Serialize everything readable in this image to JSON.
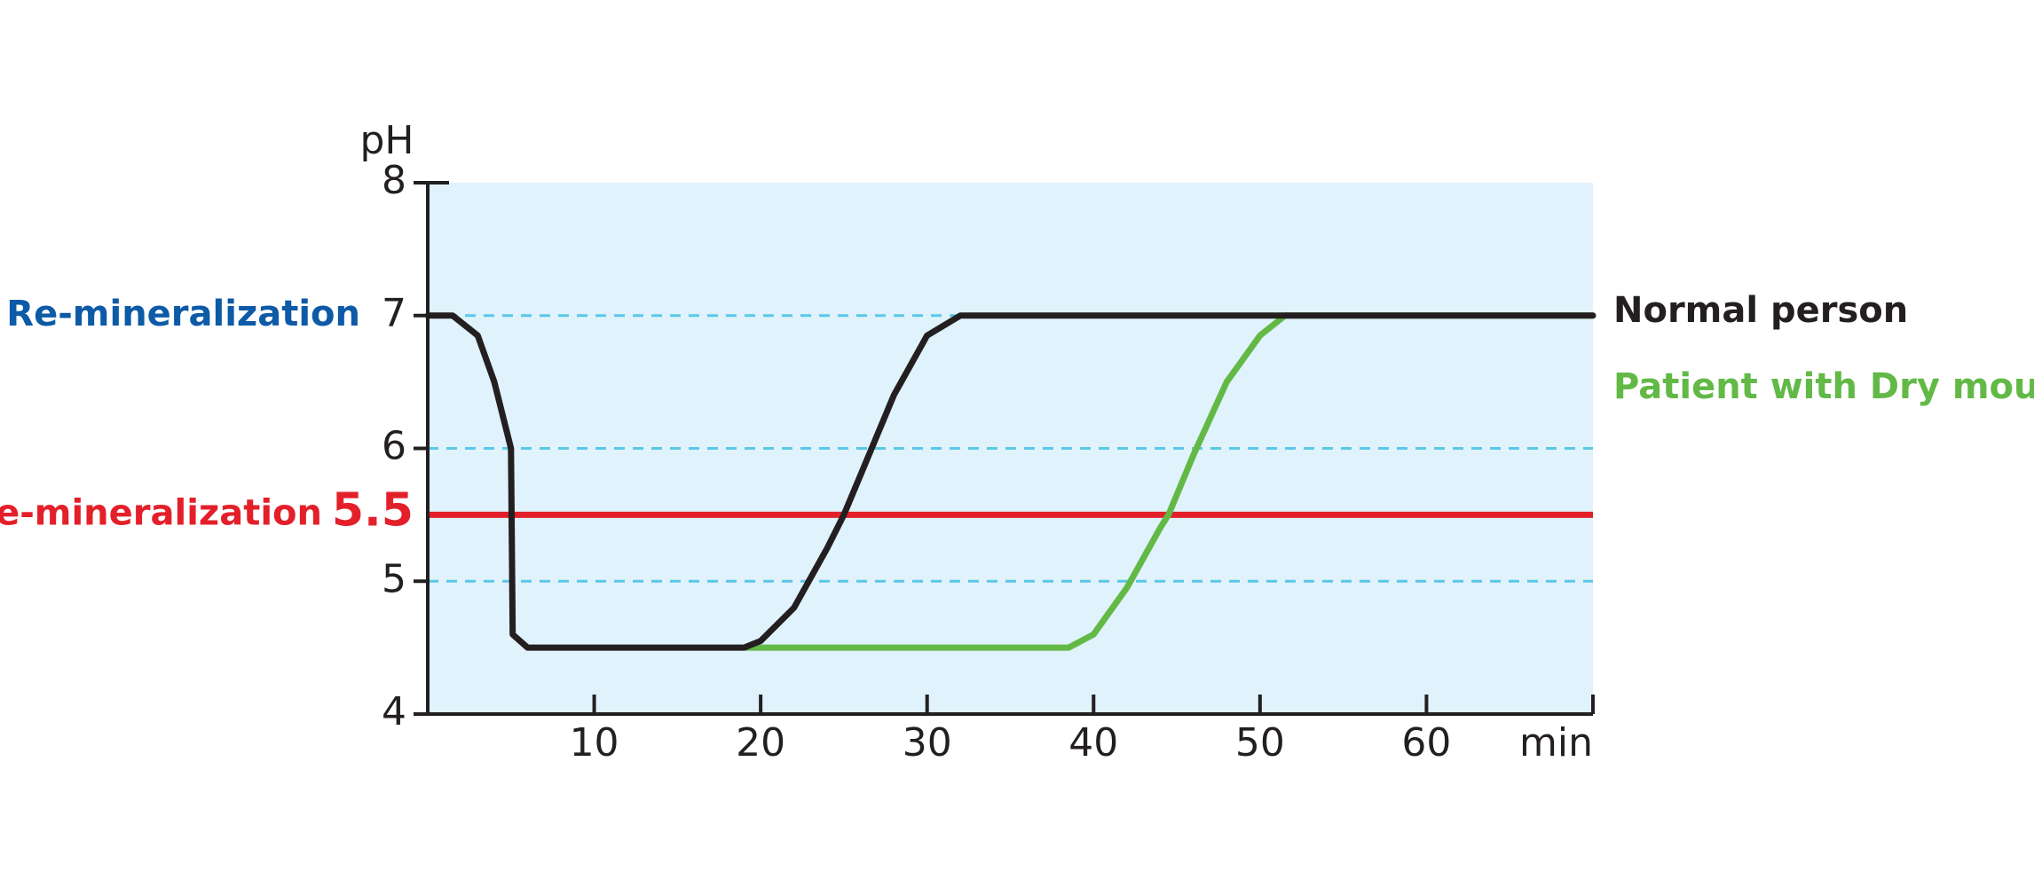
{
  "chart_data": {
    "type": "line",
    "xlabel": "min",
    "ylabel": "pH",
    "x": [
      0,
      1.5,
      3,
      4,
      5,
      5.1,
      6,
      19,
      20,
      22,
      24,
      25,
      26,
      28,
      30,
      32,
      38.5,
      40,
      42,
      44,
      44.5,
      46,
      48,
      50,
      51.5,
      70
    ],
    "series": [
      {
        "name": "Patient with Dry mouth",
        "color": "#62b946",
        "values": [
          null,
          null,
          null,
          null,
          null,
          null,
          null,
          4.5,
          4.5,
          4.5,
          4.5,
          4.5,
          4.5,
          4.5,
          4.5,
          4.5,
          4.5,
          4.6,
          4.95,
          5.4,
          5.5,
          5.95,
          6.5,
          6.85,
          7,
          7
        ]
      },
      {
        "name": "Normal person",
        "color": "#231f20",
        "values": [
          7,
          7,
          6.85,
          6.5,
          6.0,
          4.6,
          4.5,
          4.5,
          4.55,
          4.8,
          5.25,
          5.5,
          5.8,
          6.4,
          6.85,
          7,
          7,
          7,
          7,
          7,
          7,
          7,
          7,
          7,
          7,
          7
        ]
      }
    ],
    "xlim": [
      0,
      70
    ],
    "ylim": [
      4,
      8
    ],
    "xticks": [
      10,
      20,
      30,
      40,
      50,
      60
    ],
    "yticks": [
      4,
      5,
      6,
      7,
      8
    ],
    "grid": true,
    "grid_color": "#5bc7e8",
    "background": "#e0f2fb",
    "threshold": {
      "value": 5.5,
      "name": "De-mineralization",
      "color": "#e3202a"
    },
    "annotation": {
      "text": "Re-mineralization",
      "y": 7,
      "color": "#0d5aa7"
    }
  }
}
